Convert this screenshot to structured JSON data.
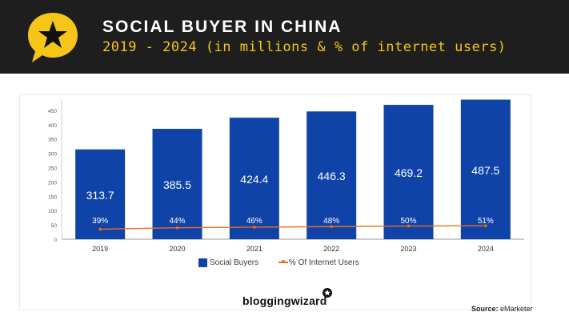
{
  "header": {
    "title": "SOCIAL BUYER IN CHINA",
    "subtitle": "2019 - 2024 (in millions & % of internet users)",
    "icon": "star-speech-bubble-icon"
  },
  "colors": {
    "header_bg": "#1e1e1e",
    "accent_yellow": "#f5c518",
    "bar_blue": "#0f43a8",
    "line_orange": "#f26c1f"
  },
  "chart_data": {
    "type": "bar",
    "categories": [
      "2019",
      "2020",
      "2021",
      "2022",
      "2023",
      "2024"
    ],
    "series": [
      {
        "name": "Social Buyers",
        "type": "bar",
        "values": [
          313.7,
          385.5,
          424.4,
          446.3,
          469.2,
          487.5
        ],
        "data_labels": [
          "313.7",
          "385.5",
          "424.4",
          "446.3",
          "469.2",
          "487.5"
        ]
      },
      {
        "name": "% Of Internet Users",
        "type": "line",
        "values": [
          39,
          44,
          46,
          48,
          50,
          51
        ],
        "data_labels": [
          "39%",
          "44%",
          "46%",
          "48%",
          "50%",
          "51%"
        ]
      }
    ],
    "ylim": [
      0,
      475
    ],
    "y_ticks": [
      0,
      50,
      100,
      150,
      200,
      250,
      300,
      350,
      400,
      450
    ],
    "grid": false,
    "legend": "bottom-center"
  },
  "legend": {
    "items": [
      "Social Buyers",
      "% Of Internet Users"
    ]
  },
  "footer": {
    "brand": "bloggingwizard",
    "source_label": "Source:",
    "source_value": "eMarketer"
  }
}
